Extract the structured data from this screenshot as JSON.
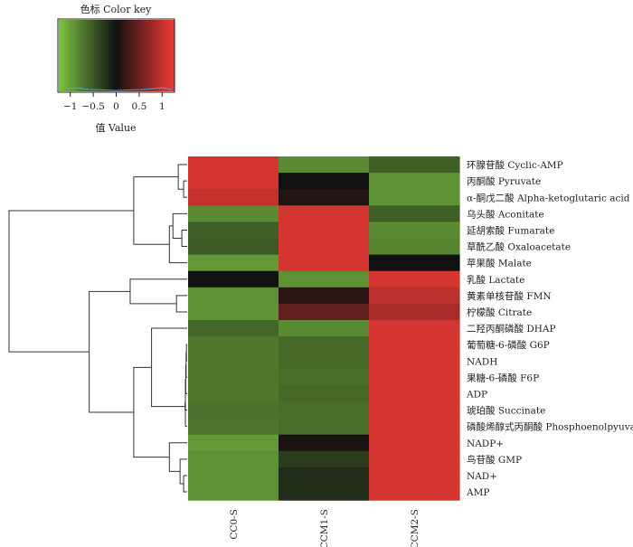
{
  "chart_data": {
    "type": "heatmap",
    "title": "",
    "color_key": {
      "title": "色标 Color key",
      "xlabel": "值 Value",
      "range": [
        -1.25,
        1.25
      ],
      "ticks": [
        -1,
        -0.5,
        0,
        0.5,
        1
      ],
      "tick_labels": [
        "−1",
        "−0.5",
        "0",
        "0.5",
        "1"
      ],
      "low_color": "#7cc342",
      "mid_color": "#111111",
      "high_color": "#ef3a34"
    },
    "columns": [
      "CC0-S",
      "CCM1-S",
      "CCM2-S"
    ],
    "rows": [
      "环腺苷酸 Cyclic-AMP",
      "丙酮酸 Pyruvate",
      "α-酮戊二酸 Alpha-ketoglutaric acid",
      "乌头酸 Aconitate",
      "延胡索酸 Fumarate",
      "草酰乙酸 Oxaloacetate",
      "苹果酸 Malate",
      "乳酸 Lactate",
      "黄素单核苷酸 FMN",
      "柠檬酸 Citrate",
      "二羟丙酮磷酸 DHAP",
      "葡萄糖-6-磷酸 G6P",
      "NADH",
      "果糖-6-磷酸 F6P",
      "ADP",
      "琥珀酸 Succinate",
      "磷酸烯醇式丙酮酸 Phosphoenolpyuvate",
      "NADP+",
      "鸟苷酸 GMP",
      "NAD+",
      "AMP"
    ],
    "values": [
      [
        1.1,
        -0.85,
        -0.55
      ],
      [
        1.1,
        0.0,
        -0.9
      ],
      [
        1.0,
        0.1,
        -0.9
      ],
      [
        -0.85,
        1.1,
        -0.55
      ],
      [
        -0.55,
        1.1,
        -0.85
      ],
      [
        -0.5,
        1.1,
        -0.8
      ],
      [
        -0.95,
        1.1,
        0.0
      ],
      [
        0.0,
        -0.9,
        1.1
      ],
      [
        -0.9,
        0.15,
        0.95
      ],
      [
        -0.9,
        0.45,
        0.85
      ],
      [
        -0.6,
        -0.85,
        1.1
      ],
      [
        -0.72,
        -0.62,
        1.1
      ],
      [
        -0.72,
        -0.62,
        1.1
      ],
      [
        -0.72,
        -0.65,
        1.1
      ],
      [
        -0.72,
        -0.62,
        1.1
      ],
      [
        -0.68,
        -0.65,
        1.1
      ],
      [
        -0.7,
        -0.65,
        1.1
      ],
      [
        -0.95,
        0.05,
        1.1
      ],
      [
        -0.9,
        -0.3,
        1.1
      ],
      [
        -0.9,
        -0.2,
        1.1
      ],
      [
        -0.9,
        -0.2,
        1.1
      ]
    ],
    "row_dendrogram": [
      [
        1,
        2
      ],
      [
        0,
        21
      ],
      [
        4,
        5
      ],
      [
        3,
        23
      ],
      [
        24,
        6
      ],
      [
        22,
        25
      ],
      [
        8,
        9
      ],
      [
        7,
        27
      ],
      [
        11,
        12
      ],
      [
        29,
        13
      ],
      [
        30,
        14
      ],
      [
        31,
        16
      ],
      [
        32,
        15
      ],
      [
        10,
        33
      ],
      [
        19,
        20
      ],
      [
        18,
        35
      ],
      [
        17,
        36
      ],
      [
        34,
        37
      ],
      [
        28,
        38
      ],
      [
        26,
        39
      ]
    ]
  }
}
